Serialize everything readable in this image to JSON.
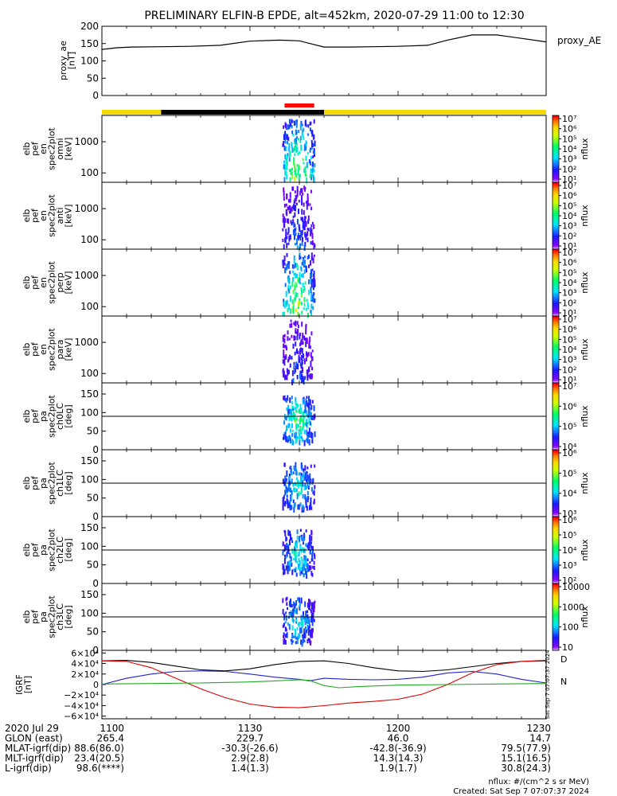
{
  "title": "PRELIMINARY ELFIN-B EPDE, alt=452km, 2020-07-29 11:00 to 12:30",
  "colors": {
    "status_yellow": "#f5d800",
    "status_black": "#000000",
    "status_red": "#ff0000",
    "grf_x": "#000000",
    "grf_y": "#2222cc",
    "grf_z": "#dd0000",
    "grf_n": "#22aa22"
  },
  "chart_data": [
    {
      "id": "proxy_ae",
      "type": "line",
      "ylabel": [
        "proxy_ae",
        "[nT]"
      ],
      "legend": "proxy_AE",
      "ylim": [
        0,
        200
      ],
      "yticks": [
        "200",
        "150",
        "100",
        "50",
        "0"
      ],
      "ytick_values": [
        200,
        150,
        100,
        50,
        0
      ],
      "x": [
        0,
        3,
        6,
        12,
        18,
        24,
        30,
        36,
        40,
        45,
        50,
        55,
        60,
        66,
        70,
        75,
        80,
        85,
        90
      ],
      "y": [
        133,
        138,
        140,
        141,
        142,
        145,
        157,
        160,
        158,
        140,
        140,
        141,
        142,
        145,
        160,
        175,
        175,
        165,
        155
      ]
    },
    {
      "id": "status_bar",
      "type": "bar",
      "segments": [
        {
          "start": 0,
          "end": 12,
          "color": "yellow"
        },
        {
          "start": 12,
          "end": 45,
          "color": "black"
        },
        {
          "start": 45,
          "end": 90,
          "color": "yellow"
        }
      ],
      "marker": {
        "start": 37,
        "end": 43,
        "color": "red"
      }
    },
    {
      "id": "en_omni",
      "type": "heatmap",
      "ylabel": [
        "elb",
        "pef",
        "en",
        "spec2plot",
        "omni",
        "[keV]"
      ],
      "yticks": [
        "1000",
        "100"
      ],
      "ytick_values": [
        1000,
        100
      ],
      "ylog": [
        50,
        7000
      ],
      "colorbar": {
        "label": "nflux",
        "ticks": [
          "10⁷",
          "10⁶",
          "10⁵",
          "10⁴",
          "10³",
          "10²",
          "10¹"
        ]
      }
    },
    {
      "id": "en_anti",
      "type": "heatmap",
      "ylabel": [
        "elb",
        "pef",
        "en",
        "spec2plot",
        "anti",
        "[keV]"
      ],
      "yticks": [
        "1000",
        "100"
      ],
      "ytick_values": [
        1000,
        100
      ],
      "ylog": [
        50,
        7000
      ],
      "colorbar": {
        "label": "nflux",
        "ticks": [
          "10⁷",
          "10⁶",
          "10⁵",
          "10⁴",
          "10³",
          "10²",
          "10¹"
        ]
      }
    },
    {
      "id": "en_perp",
      "type": "heatmap",
      "ylabel": [
        "elb",
        "pef",
        "en",
        "spec2plot",
        "perp",
        "[keV]"
      ],
      "yticks": [
        "1000",
        "100"
      ],
      "ytick_values": [
        1000,
        100
      ],
      "ylog": [
        50,
        7000
      ],
      "colorbar": {
        "label": "nflux",
        "ticks": [
          "10⁷",
          "10⁶",
          "10⁵",
          "10⁴",
          "10³",
          "10²",
          "10¹"
        ]
      }
    },
    {
      "id": "en_para",
      "type": "heatmap",
      "ylabel": [
        "elb",
        "pef",
        "en",
        "spec2plot",
        "para",
        "[keV]"
      ],
      "yticks": [
        "1000",
        "100"
      ],
      "ytick_values": [
        1000,
        100
      ],
      "ylog": [
        50,
        7000
      ],
      "colorbar": {
        "label": "nflux",
        "ticks": [
          "10⁷",
          "10⁶",
          "10⁵",
          "10⁴",
          "10³",
          "10²",
          "10¹"
        ]
      }
    },
    {
      "id": "pa_ch0",
      "type": "heatmap",
      "ylabel": [
        "elb",
        "pef",
        "pa",
        "spec2plot",
        "ch0LC",
        "[deg]"
      ],
      "yticks": [
        "150",
        "100",
        "50",
        "0"
      ],
      "ytick_values": [
        150,
        100,
        50,
        0
      ],
      "ylim": [
        0,
        180
      ],
      "hline": 90,
      "colorbar": {
        "label": "nflux",
        "ticks": [
          "10⁷",
          "10⁶",
          "10⁵",
          "10⁴"
        ]
      }
    },
    {
      "id": "pa_ch1",
      "type": "heatmap",
      "ylabel": [
        "elb",
        "pef",
        "pa",
        "spec2plot",
        "ch1LC",
        "[deg]"
      ],
      "yticks": [
        "150",
        "100",
        "50",
        "0"
      ],
      "ytick_values": [
        150,
        100,
        50,
        0
      ],
      "ylim": [
        0,
        180
      ],
      "hline": 90,
      "colorbar": {
        "label": "nflux",
        "ticks": [
          "10⁶",
          "10⁵",
          "10⁴",
          "10³"
        ]
      }
    },
    {
      "id": "pa_ch2",
      "type": "heatmap",
      "ylabel": [
        "elb",
        "pef",
        "pa",
        "spec2plot",
        "ch2LC",
        "[deg]"
      ],
      "yticks": [
        "150",
        "100",
        "50",
        "0"
      ],
      "ytick_values": [
        150,
        100,
        50,
        0
      ],
      "ylim": [
        0,
        180
      ],
      "hline": 90,
      "colorbar": {
        "label": "nflux",
        "ticks": [
          "10⁶",
          "10⁵",
          "10⁴",
          "10³",
          "10²"
        ]
      }
    },
    {
      "id": "pa_ch3",
      "type": "heatmap",
      "ylabel": [
        "elb",
        "pef",
        "pa",
        "spec2plot",
        "ch3LC",
        "[deg]"
      ],
      "yticks": [
        "150",
        "100",
        "50",
        "0"
      ],
      "ytick_values": [
        150,
        100,
        50,
        0
      ],
      "ylim": [
        0,
        180
      ],
      "hline": 90,
      "colorbar": {
        "label": "nflux",
        "ticks": [
          "10000",
          "1000",
          "100",
          "10"
        ]
      }
    },
    {
      "id": "igrf",
      "type": "line",
      "ylabel": [
        "IGRF",
        "[nT]"
      ],
      "ylim": [
        -65000,
        65000
      ],
      "yticks": [
        "6×10⁴",
        "4×10⁴",
        "2×10⁴",
        "0",
        "−2×10⁴",
        "−4×10⁴",
        "−6×10⁴"
      ],
      "ytick_values": [
        60000,
        40000,
        20000,
        0,
        -20000,
        -40000,
        -60000
      ],
      "side_labels": [
        "D",
        "N",
        "Sat Sep 7 07:07:37 2024"
      ],
      "series": [
        {
          "color": "black",
          "x": [
            0,
            5,
            10,
            15,
            20,
            25,
            30,
            35,
            40,
            45,
            50,
            55,
            60,
            65,
            70,
            75,
            80,
            85,
            90
          ],
          "y": [
            45000,
            46000,
            42000,
            35000,
            28000,
            26000,
            30000,
            38000,
            44000,
            45000,
            40000,
            32000,
            26000,
            25000,
            28000,
            34000,
            40000,
            44000,
            45000
          ]
        },
        {
          "color": "blue",
          "x": [
            0,
            5,
            10,
            15,
            20,
            25,
            30,
            35,
            40,
            42,
            45,
            50,
            55,
            60,
            65,
            70,
            75,
            80,
            85,
            90
          ],
          "y": [
            0,
            12000,
            20000,
            25000,
            26000,
            25000,
            20000,
            14000,
            10000,
            7000,
            12000,
            10000,
            9000,
            10000,
            14000,
            22000,
            25000,
            20000,
            10000,
            3000
          ]
        },
        {
          "color": "red",
          "x": [
            0,
            5,
            10,
            15,
            20,
            25,
            30,
            35,
            40,
            45,
            50,
            55,
            60,
            65,
            70,
            75,
            80,
            85,
            90
          ],
          "y": [
            45000,
            44000,
            32000,
            12000,
            -8000,
            -25000,
            -37000,
            -43000,
            -44000,
            -40000,
            -35000,
            -32000,
            -28000,
            -18000,
            0,
            22000,
            38000,
            44000,
            46000
          ]
        },
        {
          "color": "green",
          "x": [
            0,
            10,
            20,
            30,
            35,
            40,
            42,
            45,
            48,
            52,
            60,
            70,
            80,
            90
          ],
          "y": [
            1000,
            2000,
            3000,
            5000,
            7000,
            9000,
            8000,
            -2000,
            -6000,
            -4000,
            -1000,
            0,
            1000,
            2000
          ]
        }
      ]
    }
  ],
  "bottom_axis": {
    "rows": [
      {
        "label": "2020 Jul 29",
        "values": [
          "1100",
          "1130",
          "1200",
          "1230"
        ]
      },
      {
        "label": "GLON (east)",
        "values": [
          "265.4",
          "229.7",
          "46.0",
          "14.7"
        ]
      },
      {
        "label": "MLAT-igrf(dip)",
        "values": [
          "88.6(86.0)",
          "-30.3(-26.6)",
          "-42.8(-36.9)",
          "79.5(77.9)"
        ]
      },
      {
        "label": "MLT-igrf(dip)",
        "values": [
          "23.4(20.5)",
          "2.9(2.8)",
          "14.3(14.3)",
          "15.1(16.5)"
        ]
      },
      {
        "label": "L-igrf(dip)",
        "values": [
          "98.6(****)",
          "1.4(1.3)",
          "1.9(1.7)",
          "30.8(24.3)"
        ]
      }
    ],
    "tick_times": [
      0,
      30,
      60,
      90
    ]
  },
  "footer": {
    "units": "nflux: #/(cm^2 s sr MeV)",
    "created": "Created: Sat Sep  7 07:07:37 2024"
  }
}
